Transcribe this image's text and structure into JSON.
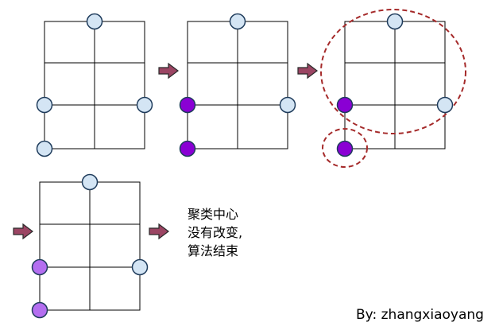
{
  "caption": {
    "lines": [
      "聚类中心",
      "没有改变,",
      "算法结束"
    ]
  },
  "author": "By: zhangxiaoyang",
  "colors": {
    "grid_line": "#000000",
    "point_light_blue": "#d4e5f4",
    "point_purple": "#8a00d4",
    "point_light_purple": "#b46ef0",
    "point_stroke": "#1f3c5c",
    "arrow_fill": "#9b4563",
    "arrow_stroke": "#2a2a2a",
    "dashed_circle": "#a52a2a"
  },
  "panels": [
    {
      "id": "step-1",
      "points": [
        {
          "col": 0.5,
          "row": 0,
          "color": "light_blue"
        },
        {
          "col": 0,
          "row": 2,
          "color": "light_blue"
        },
        {
          "col": 1,
          "row": 2,
          "color": "light_blue"
        },
        {
          "col": 0,
          "row": 3,
          "color": "light_blue"
        }
      ]
    },
    {
      "id": "step-2",
      "points": [
        {
          "col": 0.5,
          "row": 0,
          "color": "light_blue"
        },
        {
          "col": 0,
          "row": 2,
          "color": "purple"
        },
        {
          "col": 1,
          "row": 2,
          "color": "light_blue"
        },
        {
          "col": 0,
          "row": 3,
          "color": "purple"
        }
      ]
    },
    {
      "id": "step-3",
      "points": [
        {
          "col": 0.5,
          "row": 0,
          "color": "light_blue"
        },
        {
          "col": 0,
          "row": 2,
          "color": "purple"
        },
        {
          "col": 1,
          "row": 2,
          "color": "light_blue"
        },
        {
          "col": 0,
          "row": 3,
          "color": "purple"
        }
      ],
      "clusters": [
        "large",
        "small"
      ]
    },
    {
      "id": "step-4",
      "points": [
        {
          "col": 0.5,
          "row": 0,
          "color": "light_blue"
        },
        {
          "col": 0,
          "row": 2,
          "color": "light_purple"
        },
        {
          "col": 1,
          "row": 2,
          "color": "light_blue"
        },
        {
          "col": 0,
          "row": 3,
          "color": "light_purple"
        }
      ]
    }
  ]
}
